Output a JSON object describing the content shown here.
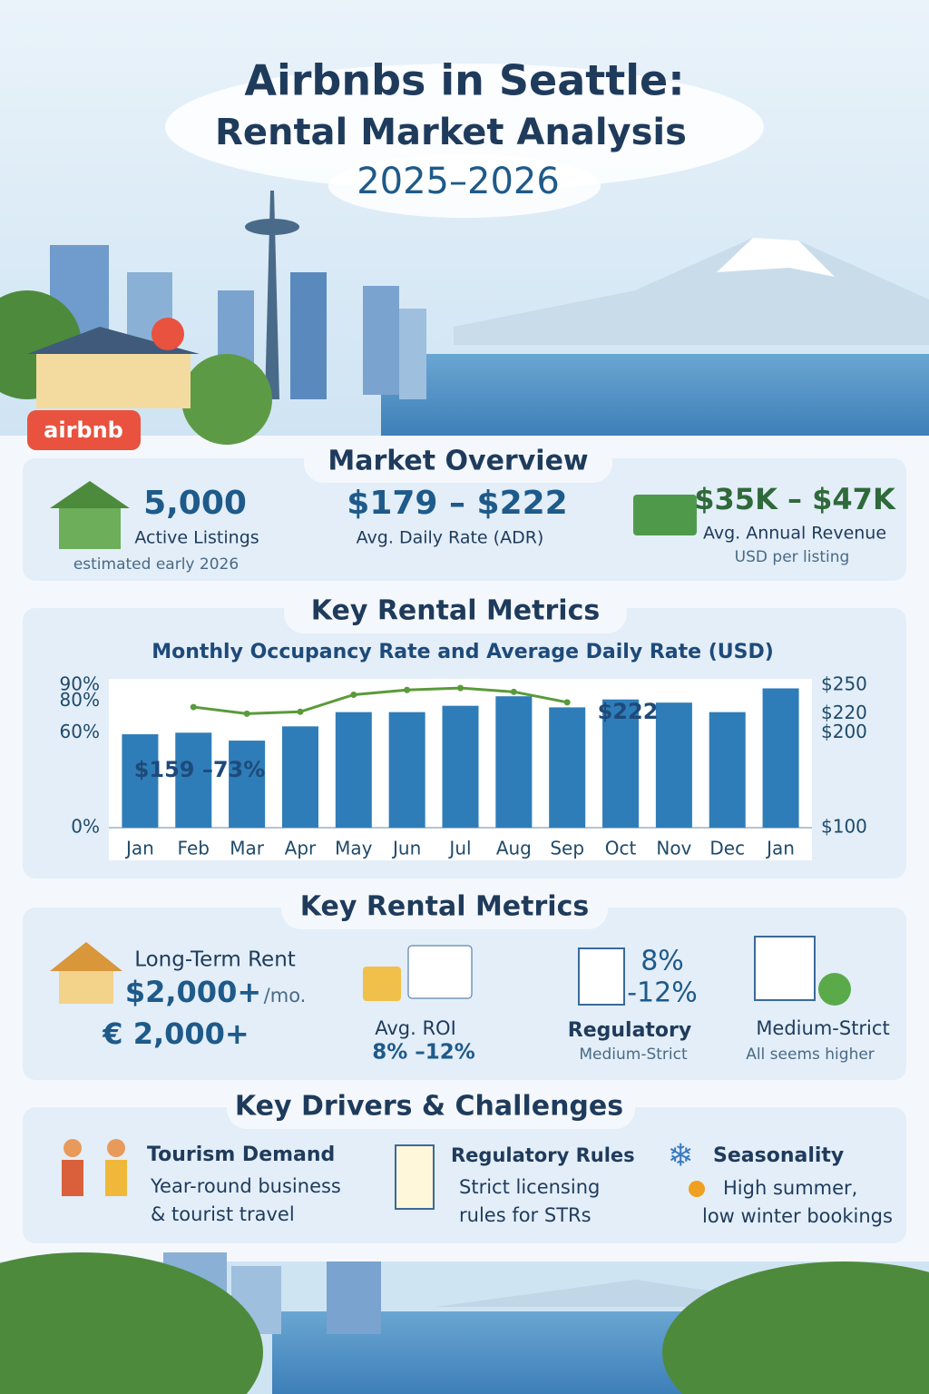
{
  "header": {
    "title": "Airbnbs in Seattle:",
    "subtitle": "Rental Market Analysis",
    "years": "2025–2026",
    "badge": "airbnb"
  },
  "overview": {
    "title": "Market Overview",
    "items": [
      {
        "value": "5,000",
        "label": "Active Listings",
        "note": "estimated early 2026"
      },
      {
        "value": "$179 – $222",
        "label": "Avg. Daily Rate (ADR)"
      },
      {
        "value": "$35K – $47K",
        "label": "Avg. Annual Revenue",
        "note": "USD per listing"
      }
    ]
  },
  "metrics_chart": {
    "title": "Key Rental Metrics",
    "chart_data": {
      "type": "bar",
      "title": "Monthly Occupancy Rate and Average Daily Rate (USD)",
      "categories": [
        "Jan",
        "Feb",
        "Mar",
        "Apr",
        "May",
        "Jun",
        "Jul",
        "Aug",
        "Sep",
        "Oct",
        "Nov",
        "Dec",
        "Jan"
      ],
      "series": [
        {
          "type": "bar",
          "color": "#2f7db8",
          "values": [
            59,
            60,
            55,
            64,
            73,
            73,
            77,
            83,
            76,
            81,
            79,
            73,
            88
          ]
        },
        {
          "type": "line",
          "axis": "y2",
          "color": "#5a9a3a",
          "values": [
            null,
            227,
            220,
            222,
            240,
            245,
            247,
            243,
            232,
            null,
            null,
            null,
            null
          ]
        }
      ],
      "ylim": [
        0,
        90
      ],
      "yticks": [
        {
          "value": 0,
          "label": "0%"
        },
        {
          "value": 60,
          "label": "60%"
        },
        {
          "value": 80,
          "label": "80%"
        },
        {
          "value": 90,
          "label": "90%"
        }
      ],
      "y2lim": [
        100,
        250
      ],
      "y2ticks": [
        {
          "value": 100,
          "label": "$100"
        },
        {
          "value": 200,
          "label": "$200"
        },
        {
          "value": 220,
          "label": "$220"
        },
        {
          "value": 250,
          "label": "$250"
        }
      ],
      "annotations": [
        "$159 –73%",
        "$222"
      ]
    }
  },
  "metrics": {
    "title": "Key Rental Metrics",
    "items": [
      {
        "label": "Long-Term Rent",
        "value": "$2,000+",
        "unit": "/mo.",
        "alt": "€ 2,000+"
      },
      {
        "label": "Avg. ROI",
        "value": "8% –12%"
      },
      {
        "top": "8%",
        "top2": "-12%",
        "label": "Regulatory",
        "sub": "Medium-Strict"
      },
      {
        "label": "Medium-Strict",
        "sub": "All seems higher"
      }
    ]
  },
  "drivers": {
    "title": "Key Drivers & Challenges",
    "items": [
      {
        "title": "Tourism Demand",
        "lines": [
          "Year-round business",
          "& tourist travel"
        ]
      },
      {
        "title": "Regulatory Rules",
        "lines": [
          "Strict licensing",
          "rules for STRs"
        ]
      },
      {
        "title": "Seasonality",
        "lines": [
          "High summer,",
          "low winter bookings"
        ]
      }
    ]
  }
}
